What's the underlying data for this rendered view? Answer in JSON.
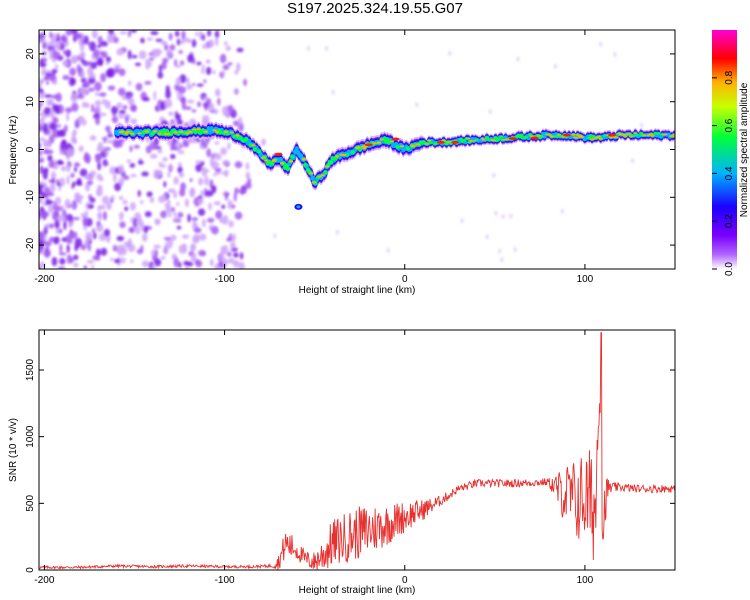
{
  "title": "S197.2025.324.19.55.G07",
  "colors": {
    "line": "#e8302e",
    "axis": "#000000",
    "spectrum_dots": "#8f2be2",
    "colorbar": [
      "#ffffff",
      "#8a00ff",
      "#1b00ff",
      "#00b3ff",
      "#00ff3c",
      "#c8ff00",
      "#ffb300",
      "#ff0000",
      "#ff00d4"
    ]
  },
  "chart_data": [
    {
      "type": "heatmap",
      "title": "S197.2025.324.19.55.G07",
      "xlabel": "Height of straight line (km)",
      "ylabel": "Frequency (Hz)",
      "xlim": [
        -203,
        150
      ],
      "ylim": [
        -25,
        25
      ],
      "xticks": [
        -200,
        -100,
        0,
        100
      ],
      "yticks": [
        -20,
        -10,
        0,
        10,
        20
      ],
      "colorbar": {
        "label": "Normalized spectral amplitude",
        "range": [
          0,
          1
        ],
        "ticks": [
          "0.0",
          "0.2",
          "0.4",
          "0.6",
          "0.8"
        ]
      },
      "ridge": {
        "x": [
          -160,
          -140,
          -120,
          -105,
          -95,
          -88,
          -80,
          -75,
          -70,
          -65,
          -60,
          -55,
          -50,
          -45,
          -40,
          -30,
          -20,
          -10,
          0,
          10,
          20,
          40,
          60,
          80,
          90,
          100,
          110,
          120,
          150
        ],
        "freq": [
          3.5,
          3.5,
          3.8,
          4.0,
          3.2,
          2.0,
          -1.0,
          -3.0,
          -2.0,
          -4.0,
          0.0,
          -3.0,
          -7.0,
          -5.0,
          -2.0,
          -0.5,
          1.0,
          2.0,
          0.0,
          1.5,
          1.5,
          2.0,
          2.5,
          3.0,
          3.0,
          2.5,
          2.5,
          3.0,
          3.0
        ]
      }
    },
    {
      "type": "line",
      "title": "",
      "xlabel": "Height of straight line (km)",
      "ylabel": "SNR (10 * v/v)",
      "xlim": [
        -203,
        150
      ],
      "ylim": [
        0,
        1800
      ],
      "xticks": [
        -200,
        -100,
        0,
        100
      ],
      "yticks": [
        0,
        500,
        1000,
        1500
      ],
      "series": [
        {
          "name": "SNR",
          "x": [
            -203,
            -180,
            -160,
            -140,
            -120,
            -100,
            -85,
            -75,
            -70,
            -66,
            -60,
            -55,
            -50,
            -45,
            -40,
            -30,
            -20,
            -10,
            0,
            10,
            20,
            30,
            40,
            60,
            80,
            85,
            90,
            95,
            100,
            103,
            106,
            108,
            110,
            112,
            115,
            120,
            130,
            150
          ],
          "values": [
            20,
            20,
            30,
            25,
            30,
            25,
            25,
            30,
            60,
            200,
            150,
            80,
            60,
            120,
            200,
            260,
            300,
            340,
            400,
            450,
            520,
            610,
            650,
            650,
            660,
            600,
            560,
            520,
            550,
            500,
            450,
            1500,
            300,
            600,
            620,
            620,
            610,
            610
          ],
          "noise": [
            10,
            10,
            10,
            10,
            10,
            10,
            10,
            12,
            60,
            120,
            80,
            60,
            80,
            140,
            180,
            200,
            200,
            160,
            120,
            80,
            40,
            30,
            30,
            30,
            30,
            140,
            250,
            320,
            360,
            420,
            420,
            300,
            400,
            100,
            40,
            30,
            30,
            30
          ]
        }
      ]
    }
  ]
}
